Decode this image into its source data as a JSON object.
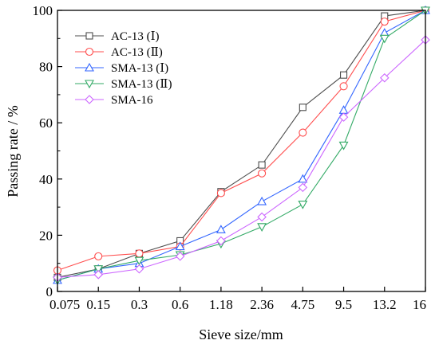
{
  "chart_data": {
    "type": "line",
    "title": "",
    "xlabel": "Sieve size/mm",
    "ylabel": "Passing rate / %",
    "categories": [
      "0.075",
      "0.15",
      "0.3",
      "0.6",
      "1.18",
      "2.36",
      "4.75",
      "9.5",
      "13.2",
      "16"
    ],
    "ylim": [
      0,
      100
    ],
    "yticks": [
      0,
      20,
      40,
      60,
      80,
      100
    ],
    "grid": false,
    "legend_position": "top-left",
    "series": [
      {
        "name": "AC-13 (Ⅰ)",
        "color": "#4d4d4d",
        "marker": "square",
        "values": [
          5,
          8,
          13.5,
          18,
          35.5,
          45,
          65.5,
          77,
          98,
          100
        ]
      },
      {
        "name": "AC-13 (Ⅱ)",
        "color": "#ff4d4d",
        "marker": "circle",
        "values": [
          7.5,
          12.5,
          13.5,
          16,
          35,
          42,
          56.5,
          73,
          96,
          100
        ]
      },
      {
        "name": "SMA-13 (Ⅰ)",
        "color": "#3366ff",
        "marker": "triangle-up",
        "values": [
          4,
          8,
          10,
          16,
          22,
          32,
          40,
          64.5,
          92,
          100
        ]
      },
      {
        "name": "SMA-13 (Ⅱ)",
        "color": "#33aa66",
        "marker": "triangle-down",
        "values": [
          4,
          8,
          11,
          13,
          17,
          23,
          31,
          52,
          90,
          100
        ]
      },
      {
        "name": "SMA-16",
        "color": "#cc66ff",
        "marker": "diamond",
        "values": [
          5,
          6,
          8,
          12.5,
          18,
          26.5,
          37,
          62,
          76,
          89.5
        ]
      }
    ]
  }
}
